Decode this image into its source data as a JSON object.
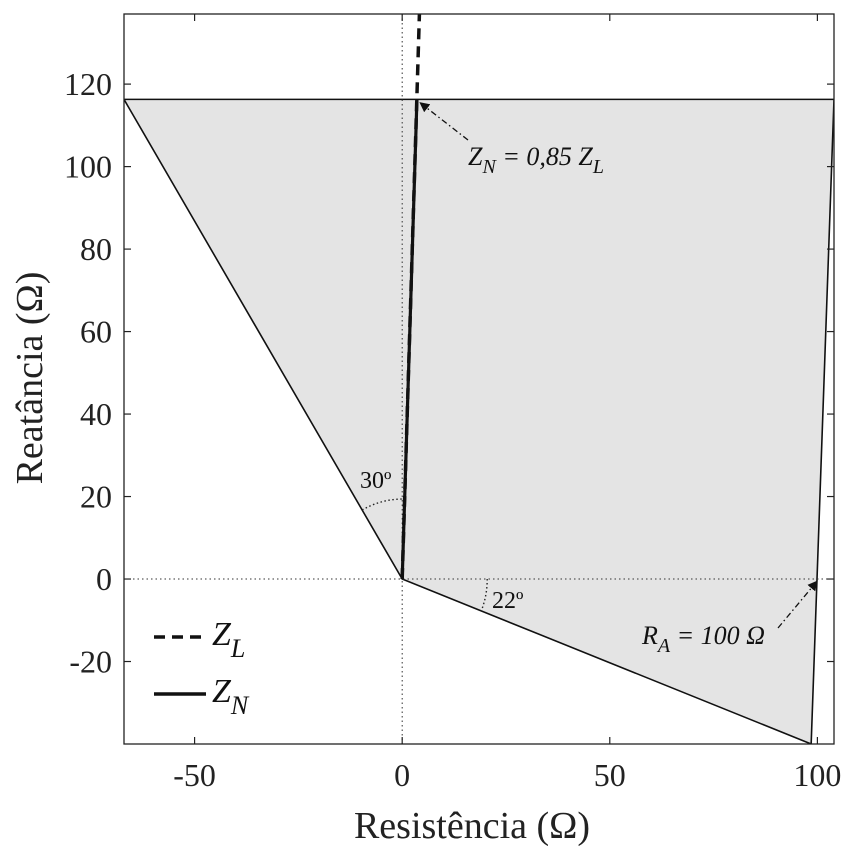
{
  "chart_data": {
    "type": "line",
    "xlabel": "Resistência (Ω)",
    "ylabel": "Reatância (Ω)",
    "xlim": [
      -67,
      104
    ],
    "ylim": [
      -40,
      137
    ],
    "xticks": [
      -50,
      0,
      50,
      100
    ],
    "yticks": [
      -20,
      0,
      20,
      40,
      60,
      80,
      100,
      120
    ],
    "grid": false,
    "legend_position": "bottom-left",
    "series": [
      {
        "name": "Z_L",
        "style": "dashed",
        "x": [
          0,
          4.15
        ],
        "y": [
          0,
          137
        ]
      },
      {
        "name": "Z_N",
        "style": "solid",
        "x": [
          0,
          3.55
        ],
        "y": [
          0,
          116.3
        ]
      }
    ],
    "quadrilateral": {
      "fill": "#e4e4e4",
      "vertices": [
        [
          -67,
          116.3
        ],
        [
          104,
          116.3
        ],
        [
          98.5,
          -40
        ],
        [
          0,
          0
        ]
      ]
    },
    "reference_lines": [
      {
        "orientation": "vertical",
        "value": 0,
        "style": "dotted"
      },
      {
        "orientation": "horizontal",
        "value": 0,
        "style": "dotted"
      }
    ],
    "annotations": [
      {
        "text": "Z_N = 0,85 Z_L",
        "point": [
          3.55,
          116.3
        ]
      },
      {
        "text": "R_A = 100 Ω",
        "point": [
          100,
          0
        ]
      }
    ],
    "angles": [
      {
        "label": "30º"
      },
      {
        "label": "22º"
      }
    ]
  },
  "text": {
    "legend_zl_main": "Z",
    "legend_zl_sub": "L",
    "legend_zn_main": "Z",
    "legend_zn_sub": "N",
    "annot_zn_main1": "Z",
    "annot_zn_sub1": "N",
    "annot_zn_mid": " = 0,85 Z",
    "annot_zn_sub2": "L",
    "annot_ra_main": "R",
    "annot_ra_sub": "A",
    "annot_ra_rest": " = 100 Ω",
    "angle_30": "30º",
    "angle_22": "22º"
  }
}
